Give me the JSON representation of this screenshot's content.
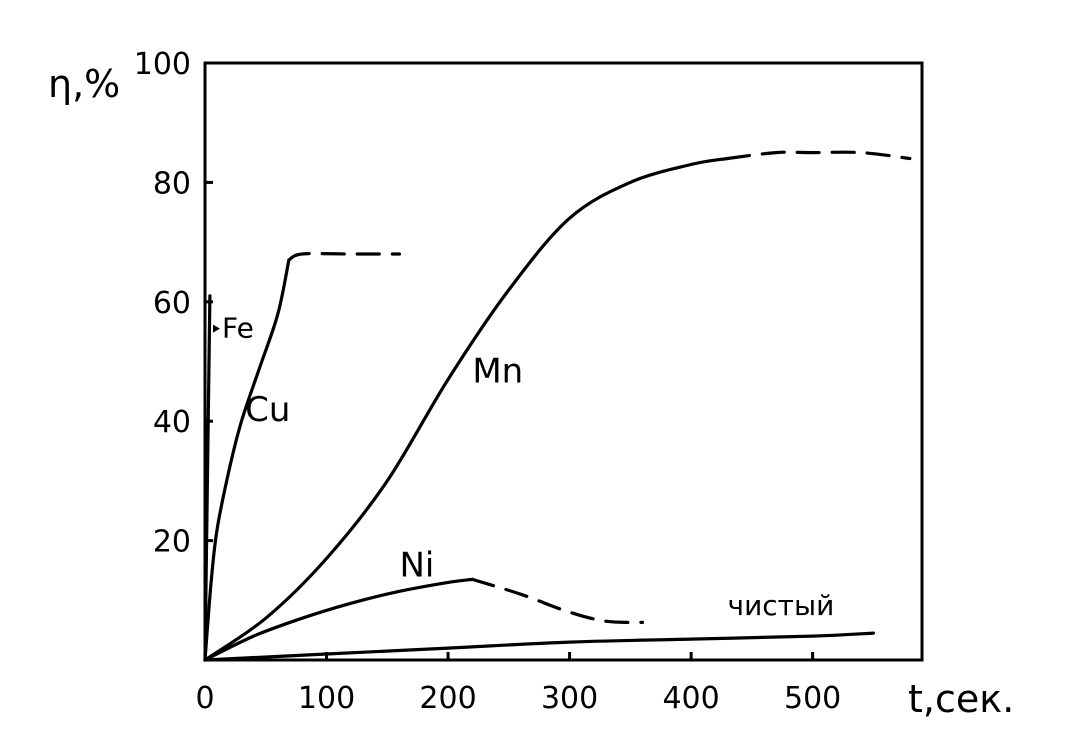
{
  "chart_data": {
    "type": "line",
    "title": "",
    "xlabel": "t,сек.",
    "ylabel": "η,%",
    "xlim": [
      0,
      590
    ],
    "ylim": [
      0,
      100
    ],
    "x_ticks": [
      "0",
      "100",
      "200",
      "300",
      "400",
      "500"
    ],
    "y_ticks": [
      "20",
      "40",
      "60",
      "80",
      "100"
    ],
    "grid": false,
    "legend": "none",
    "series": [
      {
        "name": "Fe",
        "solid": [
          [
            0,
            0
          ],
          [
            2,
            30
          ],
          [
            4,
            61
          ]
        ],
        "dashed": []
      },
      {
        "name": "Cu",
        "solid": [
          [
            0,
            0
          ],
          [
            5,
            13
          ],
          [
            10,
            22
          ],
          [
            20,
            32
          ],
          [
            30,
            40
          ],
          [
            45,
            49
          ],
          [
            60,
            58
          ],
          [
            69,
            67
          ]
        ],
        "dashed": [
          [
            69,
            67
          ],
          [
            80,
            68
          ],
          [
            120,
            68
          ],
          [
            160,
            68
          ]
        ]
      },
      {
        "name": "Mn",
        "solid": [
          [
            0,
            0
          ],
          [
            50,
            7
          ],
          [
            100,
            17
          ],
          [
            150,
            30
          ],
          [
            200,
            47
          ],
          [
            250,
            62
          ],
          [
            300,
            74
          ],
          [
            350,
            80
          ],
          [
            400,
            83
          ],
          [
            430,
            84
          ]
        ],
        "dashed": [
          [
            430,
            84
          ],
          [
            470,
            85
          ],
          [
            500,
            85
          ],
          [
            540,
            85
          ],
          [
            580,
            84
          ]
        ]
      },
      {
        "name": "Ni",
        "solid": [
          [
            0,
            0
          ],
          [
            40,
            4
          ],
          [
            80,
            7
          ],
          [
            120,
            9.5
          ],
          [
            160,
            11.5
          ],
          [
            200,
            13
          ],
          [
            220,
            13.5
          ]
        ],
        "dashed": [
          [
            220,
            13.5
          ],
          [
            260,
            11
          ],
          [
            300,
            8
          ],
          [
            330,
            6.5
          ],
          [
            360,
            6.3
          ]
        ]
      },
      {
        "name": "чистый",
        "solid": [
          [
            0,
            0
          ],
          [
            100,
            1
          ],
          [
            200,
            2
          ],
          [
            300,
            3
          ],
          [
            400,
            3.5
          ],
          [
            500,
            4
          ],
          [
            550,
            4.5
          ]
        ],
        "dashed": []
      }
    ],
    "colors": {
      "line": "#000000",
      "background": "#ffffff"
    }
  }
}
